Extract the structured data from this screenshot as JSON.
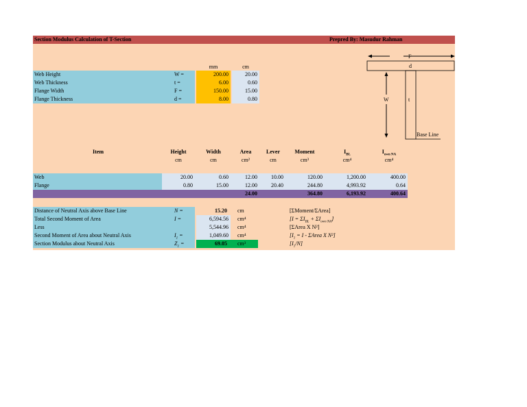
{
  "header": {
    "title": "Section Modulus Calculation of T-Section",
    "author": "Prepred By: Masudur Rahman"
  },
  "units": {
    "mm": "mm",
    "cm": "cm"
  },
  "inputs": [
    {
      "label": "Web Height",
      "symbol": "W =",
      "mm": "200.00",
      "cm": "20.00"
    },
    {
      "label": "Web Thickness",
      "symbol": "t =",
      "mm": "6.00",
      "cm": "0.60"
    },
    {
      "label": "Flange Width",
      "symbol": "F =",
      "mm": "150.00",
      "cm": "15.00"
    },
    {
      "label": "Flange Thickness",
      "symbol": "d =",
      "mm": "8.00",
      "cm": "0.80"
    }
  ],
  "diagram": {
    "F": "F",
    "d": "d",
    "W": "W",
    "t": "t",
    "base_line": "Base Line"
  },
  "table": {
    "headers": [
      {
        "label": "Item",
        "unit": ""
      },
      {
        "label": "Height",
        "unit": "cm"
      },
      {
        "label": "Width",
        "unit": "cm"
      },
      {
        "label": "Area",
        "unit": "cm²"
      },
      {
        "label": "Lever",
        "unit": "cm"
      },
      {
        "label": "Moment",
        "unit": "cm³"
      },
      {
        "label": "I",
        "sub": "BL",
        "unit": "cm⁴"
      },
      {
        "label": "I",
        "sub": "own NA",
        "unit": "cm⁴"
      }
    ],
    "rows": [
      {
        "item": "Web",
        "height": "20.00",
        "width": "0.60",
        "area": "12.00",
        "lever": "10.00",
        "moment": "120.00",
        "ibl": "1,200.00",
        "ina": "400.00"
      },
      {
        "item": "Flange",
        "height": "0.80",
        "width": "15.00",
        "area": "12.00",
        "lever": "20.40",
        "moment": "244.80",
        "ibl": "4,993.92",
        "ina": "0.64"
      }
    ],
    "totals": {
      "area": "24.00",
      "moment": "364.80",
      "ibl": "6,193.92",
      "ina": "400.64"
    }
  },
  "results": [
    {
      "label": "Distance of Neutral Axis above Base Line",
      "symbol": "N =",
      "value": "15.20",
      "unit": "cm",
      "formula": "[ΣMoment/ΣArea]"
    },
    {
      "label": "Total Second Moment of Area",
      "symbol": "I =",
      "value": "6,594.56",
      "unit": "cm⁴",
      "formula": "[I = ΣI",
      "f_sub1": "BL",
      "f_mid": " + ΣI",
      "f_sub2": "own NA",
      "f_end": "]"
    },
    {
      "label": "Less",
      "symbol": "",
      "value": "5,544.96",
      "unit": "cm⁴",
      "formula": "[ΣArea X N²]"
    },
    {
      "label": "Second Moment of Area about Neutral Axis",
      "symbol": "I",
      "symbol_sub": "1",
      "symbol_end": " =",
      "value": "1,049.60",
      "unit": "cm⁴",
      "formula": "[I",
      "f_sub1": "1",
      "f_mid": " = I - ΣArea X N²]"
    },
    {
      "label": "Section Modulus about Neutral Axis",
      "symbol": "Z",
      "symbol_sub": "1",
      "symbol_end": " =",
      "value": "69.05",
      "unit": "cm³",
      "formula": "[I",
      "f_sub1": "1",
      "f_mid": "/N]"
    }
  ],
  "colors": {
    "title_bar": "#c0504d",
    "sheet": "#fcd5b4",
    "label_blue": "#92cddc",
    "value_light": "#dbe5f1",
    "input_orange": "#ffc000",
    "total_purple": "#8064a2",
    "result_green": "#00b050"
  }
}
